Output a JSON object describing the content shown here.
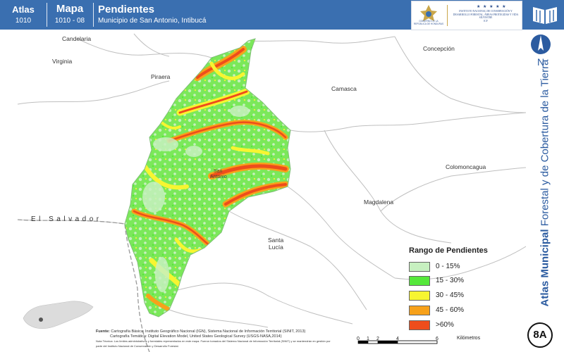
{
  "header": {
    "atlas_label": "Atlas",
    "atlas_code": "1010",
    "map_label": "Mapa",
    "map_code": "1010 - 08",
    "title": "Pendientes",
    "subtitle": "Municipio de San Antonio, Intibucá"
  },
  "logo": {
    "left_text": "GOBIERNO DE LA REPÚBLICA DE HONDURAS",
    "right_text": "INSTITUTO NACIONAL DE CONSERVACIÓN Y DESARROLLO FORESTAL, ÁREAS PROTEGIDAS Y VIDA SILVESTRE",
    "right_abbr": "ICF",
    "stars": "★ ★ ★ ★ ★"
  },
  "sidebar": {
    "vertical_title_bold": "Atlas Municipal",
    "vertical_title_rest": " Forestal y de Cobertura de la Tierra",
    "north_label": "N",
    "badge": "8A"
  },
  "places": {
    "candelaria": "Candelaria",
    "virginia": "Virginia",
    "piraera": "Piraera",
    "camasca": "Camasca",
    "concepcion": "Concepción",
    "colomoncagua": "Colomoncagua",
    "magdalena": "Magdalena",
    "santa_lucia_1": "Santa",
    "santa_lucia_2": "Lucía",
    "san_antonio_1": "San",
    "san_antonio_2": "Antonio",
    "el_salvador": "El Salvador"
  },
  "legend": {
    "title": "Rango de Pendientes",
    "items": [
      {
        "label": "0 - 15%",
        "color": "#c7f0c0"
      },
      {
        "label": "15 - 30%",
        "color": "#55e83a"
      },
      {
        "label": "30 - 45%",
        "color": "#f7f531"
      },
      {
        "label": "45 - 60%",
        "color": "#f7a11a"
      },
      {
        "label": ">60%",
        "color": "#ee4d1c"
      }
    ]
  },
  "source": {
    "label": "Fuente:",
    "line1": " Cartografía Básica: Instituto Geográfico Nacional (IGN), Sistema Nacional de Información Territorial (SINIT, 2013)",
    "line2": "Cartografía Temática: Digital Elevation Model, United States Geological Survey (USGS-NASA,2014)",
    "note": "Nota Técnica: Los límites administrativos y forestales representados en este mapa. Fueron tomados del Sistema Nacional de Información Territorial (SINIT) y se mantendrán en gestión por parte del Instituto Nacional de Conservación y Desarrollo Forestal."
  },
  "scale": {
    "ticks": [
      "0",
      "1",
      "2",
      "4",
      "6"
    ],
    "unit": "Kilómetros"
  },
  "colors": {
    "header_blue": "#3a6fb0",
    "municipality_base": "#c7f0c0"
  }
}
